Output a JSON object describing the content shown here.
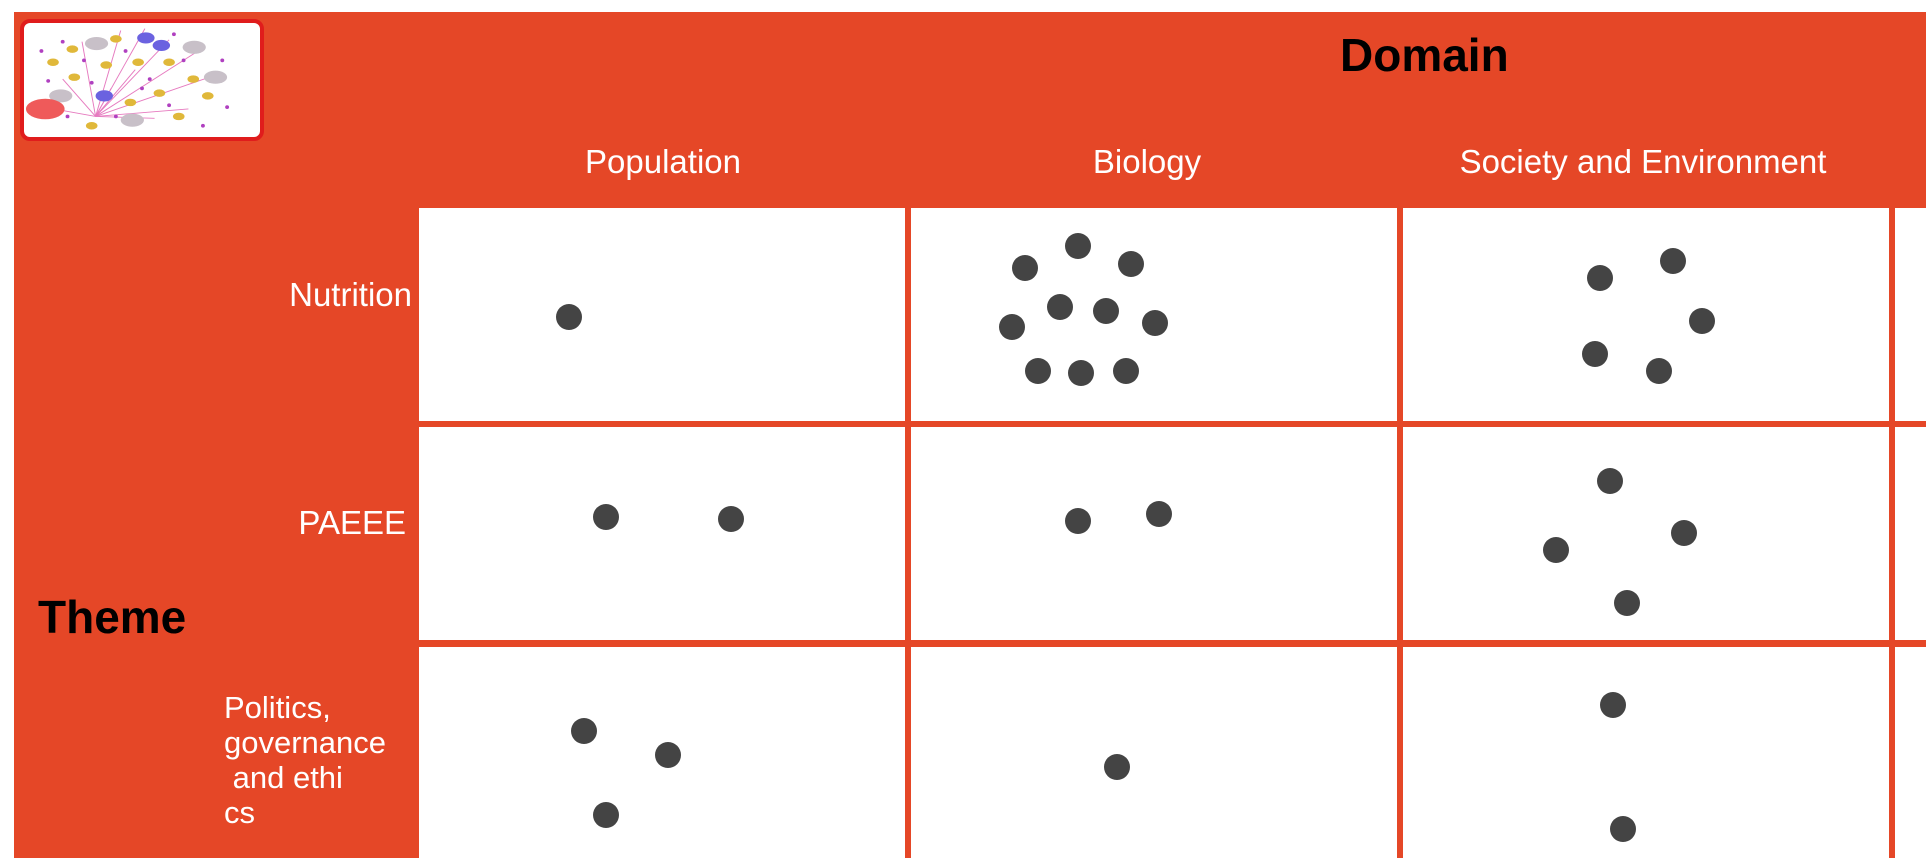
{
  "domain_label": "Domain",
  "theme_label": "Theme",
  "columns": [
    {
      "label": "Population"
    },
    {
      "label": "Biology"
    },
    {
      "label": "Society and Environment"
    }
  ],
  "rows": [
    {
      "label": "Nutrition"
    },
    {
      "label": "PAEEE"
    },
    {
      "label": "Politics,\ngovernance\n and ethi\ncs"
    }
  ],
  "cells": [
    [
      {
        "count": 1
      },
      {
        "count": 10
      },
      {
        "count": 5
      }
    ],
    [
      {
        "count": 2
      },
      {
        "count": 2
      },
      {
        "count": 4
      }
    ],
    [
      {
        "count": 3
      },
      {
        "count": 1
      },
      {
        "count": 2
      }
    ]
  ],
  "colors": {
    "background": "#e54727",
    "cell": "#ffffff",
    "dot": "#444444",
    "logo_border": "#e01c1c"
  },
  "icons": {
    "logo": "network-graph-logo"
  }
}
